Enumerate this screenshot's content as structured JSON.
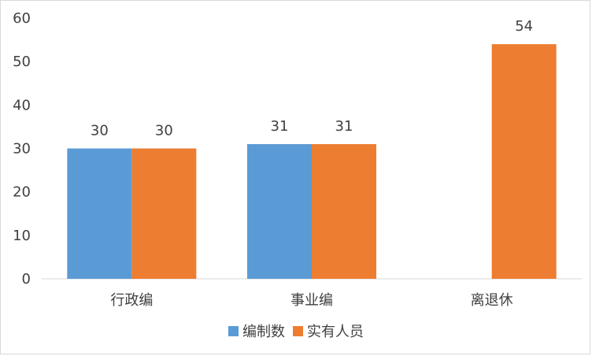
{
  "chart_data": {
    "type": "bar",
    "title": "",
    "xlabel": "",
    "ylabel": "",
    "categories": [
      "行政编",
      "事业编",
      "离退休"
    ],
    "series": [
      {
        "name": "编制数",
        "values": [
          30,
          31,
          null
        ],
        "color": "#5b9bd5"
      },
      {
        "name": "实有人员",
        "values": [
          30,
          31,
          54
        ],
        "color": "#ed7d31"
      }
    ],
    "ylim": [
      0,
      60
    ],
    "yticks": [
      0,
      10,
      20,
      30,
      40,
      50,
      60
    ],
    "grid": false,
    "data_labels": true,
    "legend_position": "bottom"
  }
}
